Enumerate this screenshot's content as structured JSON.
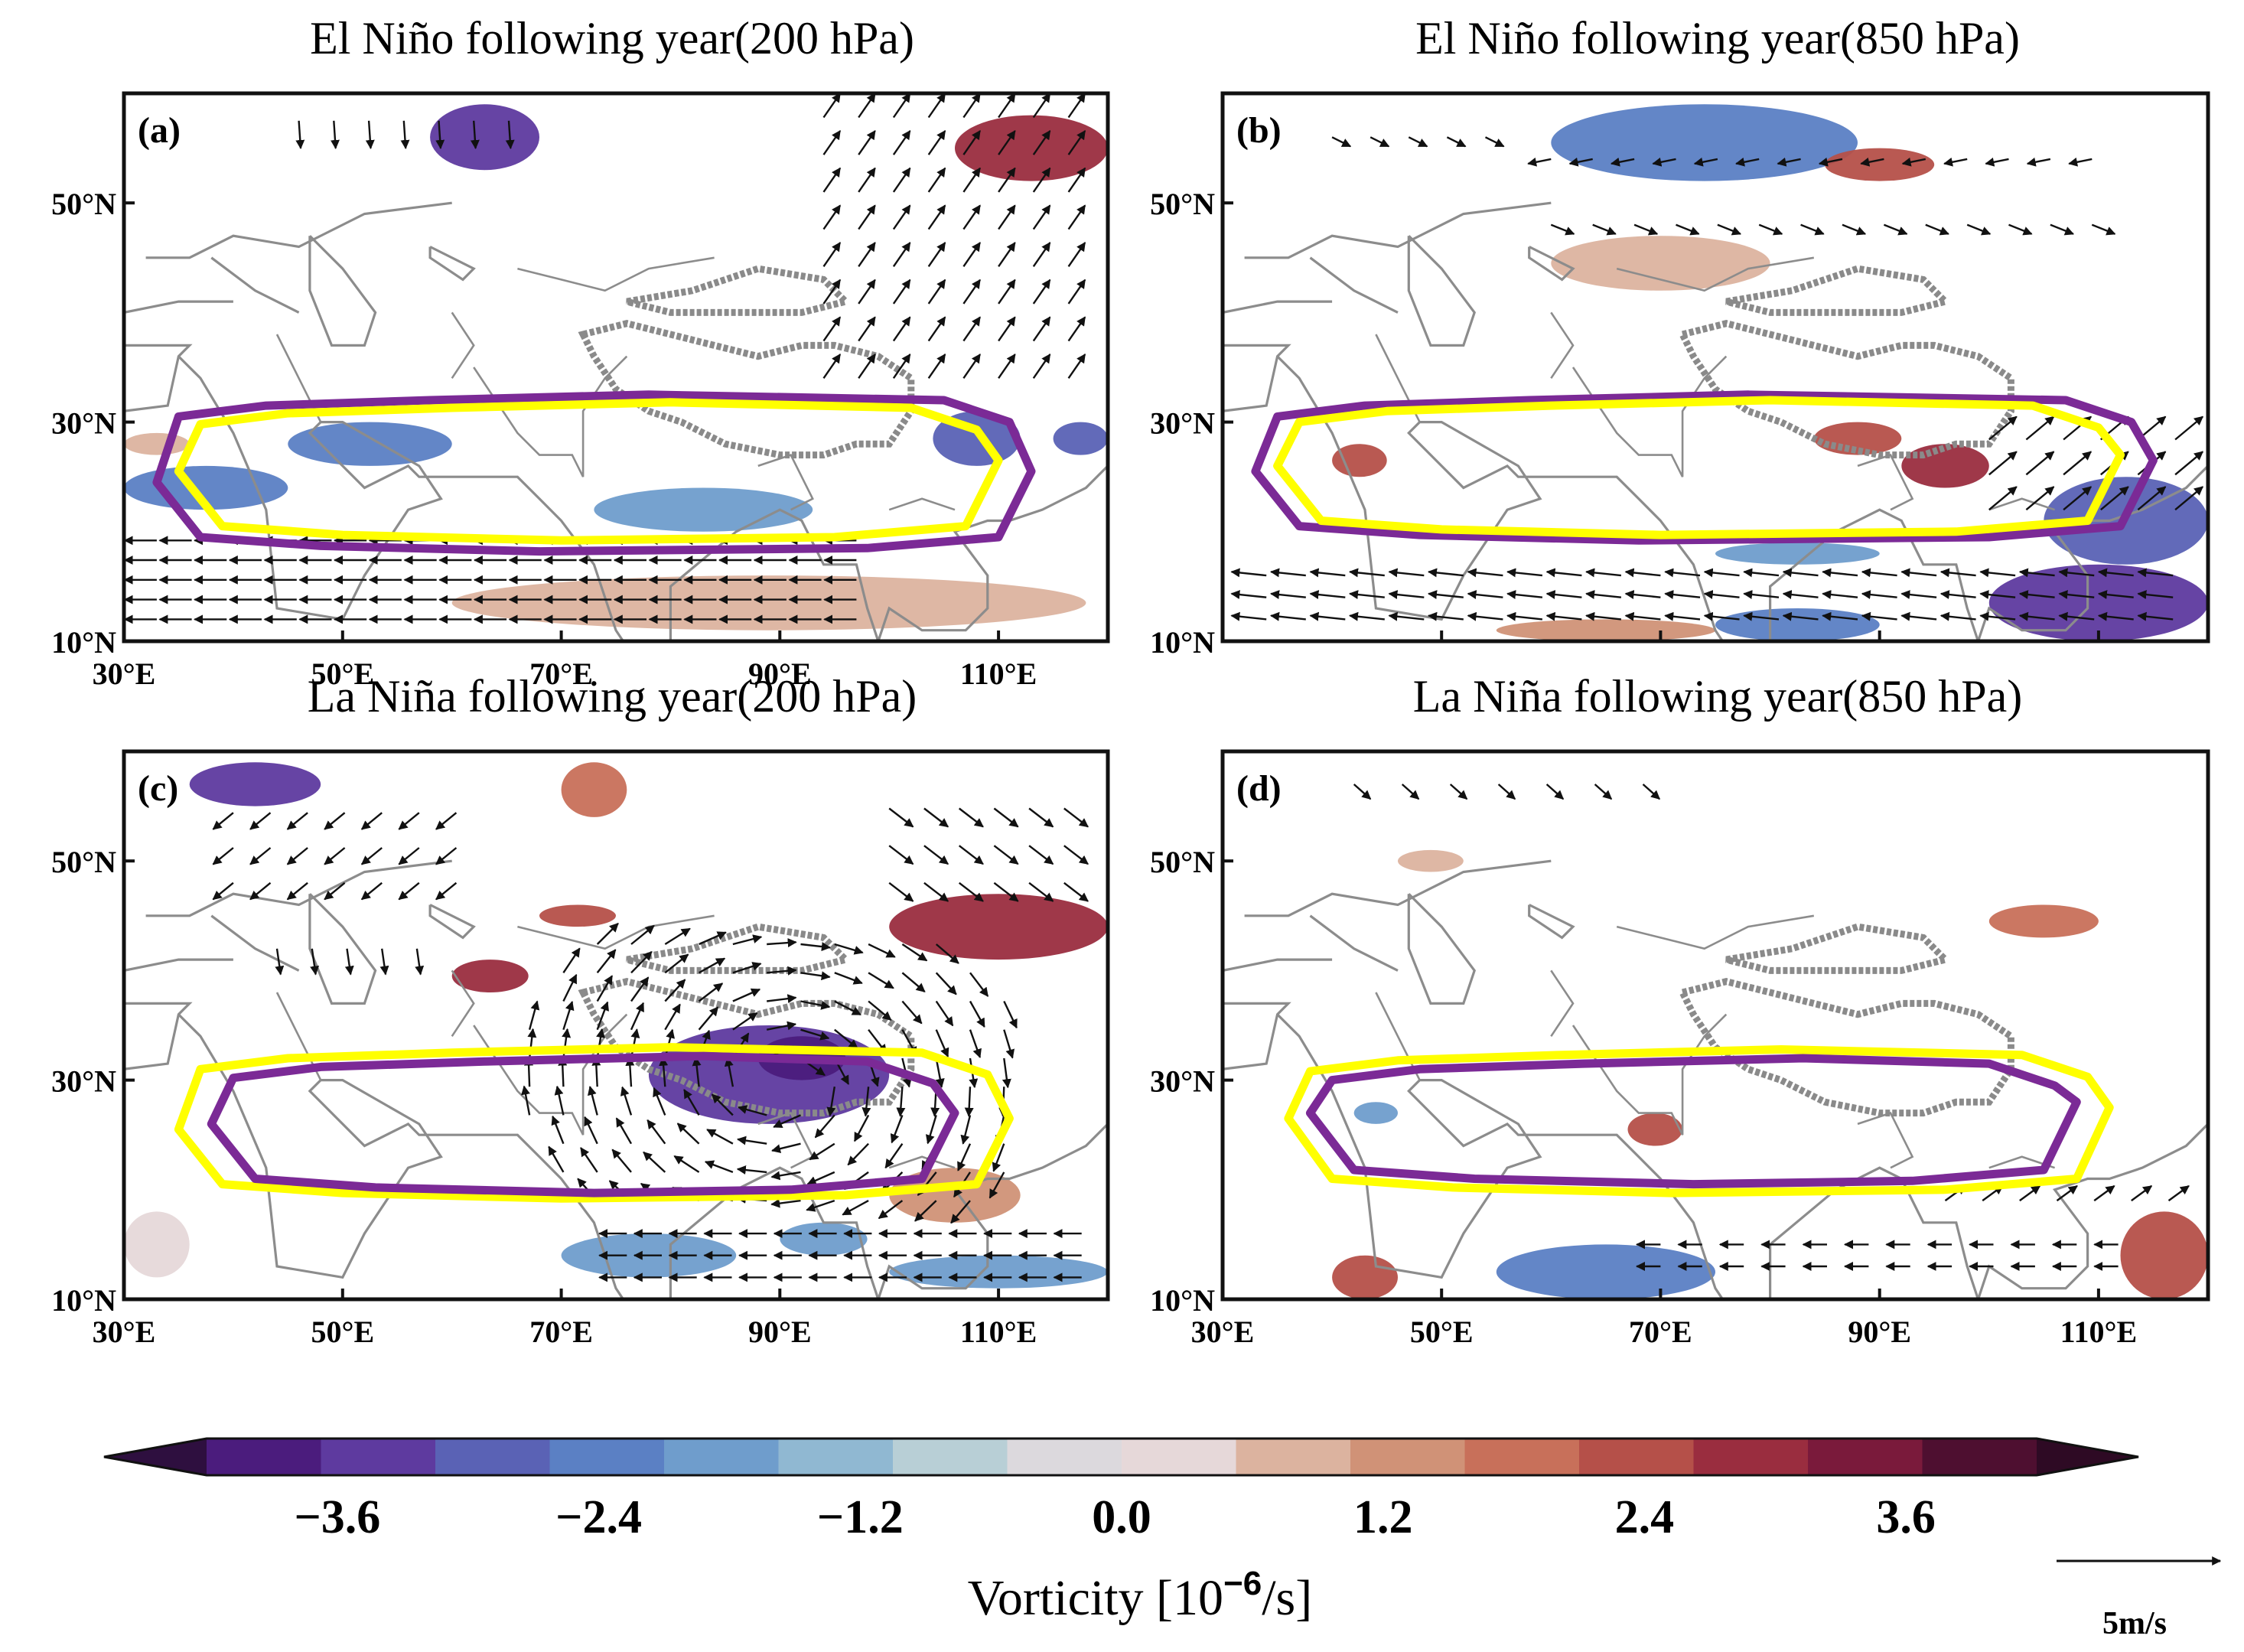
{
  "chart_data": [
    {
      "type": "map_contour_vector",
      "panel_label": "(a)",
      "title": "El Niño following year(200 hPa)",
      "lon_ticks": [
        "30°E",
        "50°E",
        "70°E",
        "90°E",
        "110°E"
      ],
      "lat_ticks": [
        "50°N",
        "30°N",
        "10°N"
      ],
      "lon_range": [
        30,
        120
      ],
      "lat_range": [
        10,
        60
      ],
      "contour_colors": [
        "#7b2a96",
        "#ffff00"
      ],
      "vorticity_patches": [
        {
          "lon": [
            58,
            68
          ],
          "lat": [
            53,
            59
          ],
          "v": -3.6
        },
        {
          "lon": [
            30,
            45
          ],
          "lat": [
            22,
            26
          ],
          "v": -2.4
        },
        {
          "lon": [
            45,
            60
          ],
          "lat": [
            26,
            30
          ],
          "v": -2.4
        },
        {
          "lon": [
            73,
            93
          ],
          "lat": [
            20,
            24
          ],
          "v": -1.8
        },
        {
          "lon": [
            104,
            112
          ],
          "lat": [
            26,
            31
          ],
          "v": -3.0
        },
        {
          "lon": [
            115,
            120
          ],
          "lat": [
            27,
            30
          ],
          "v": -3.0
        },
        {
          "lon": [
            106,
            120
          ],
          "lat": [
            52,
            58
          ],
          "v": 3.6
        },
        {
          "lon": [
            60,
            118
          ],
          "lat": [
            11,
            16
          ],
          "v": 1.6
        },
        {
          "lon": [
            30,
            36
          ],
          "lat": [
            27,
            29
          ],
          "v": 1.2
        }
      ],
      "wind_field": "divergent_east_west"
    },
    {
      "type": "map_contour_vector",
      "panel_label": "(b)",
      "title": "El Niño following year(850 hPa)",
      "lon_ticks": [],
      "lat_ticks": [
        "50°N",
        "30°N",
        "10°N"
      ],
      "lon_range": [
        30,
        120
      ],
      "lat_range": [
        10,
        60
      ],
      "contour_colors": [
        "#7b2a96",
        "#ffff00"
      ],
      "vorticity_patches": [
        {
          "lon": [
            60,
            88
          ],
          "lat": [
            52,
            59
          ],
          "v": -2.4
        },
        {
          "lon": [
            75,
            90
          ],
          "lat": [
            17,
            19
          ],
          "v": -1.8
        },
        {
          "lon": [
            100,
            120
          ],
          "lat": [
            10,
            17
          ],
          "v": -3.2
        },
        {
          "lon": [
            105,
            120
          ],
          "lat": [
            17,
            25
          ],
          "v": -2.8
        },
        {
          "lon": [
            75,
            90
          ],
          "lat": [
            10,
            13
          ],
          "v": -2.0
        },
        {
          "lon": [
            55,
            75
          ],
          "lat": [
            10,
            12
          ],
          "v": 2.2
        },
        {
          "lon": [
            40,
            45
          ],
          "lat": [
            25,
            28
          ],
          "v": 3.0
        },
        {
          "lon": [
            84,
            92
          ],
          "lat": [
            27,
            30
          ],
          "v": 3.2
        },
        {
          "lon": [
            92,
            100
          ],
          "lat": [
            24,
            28
          ],
          "v": 3.6
        },
        {
          "lon": [
            60,
            80
          ],
          "lat": [
            42,
            47
          ],
          "v": 1.6
        },
        {
          "lon": [
            85,
            95
          ],
          "lat": [
            52,
            55
          ],
          "v": 3.0
        }
      ],
      "wind_field": "easterlies_south"
    },
    {
      "type": "map_contour_vector",
      "panel_label": "(c)",
      "title": "La Niña following year(200 hPa)",
      "lon_ticks": [
        "30°E",
        "50°E",
        "70°E",
        "90°E",
        "110°E"
      ],
      "lat_ticks": [
        "50°N",
        "30°N",
        "10°N"
      ],
      "lon_range": [
        30,
        120
      ],
      "lat_range": [
        10,
        60
      ],
      "contour_colors": [
        "#ffff00",
        "#7b2a96"
      ],
      "vorticity_patches": [
        {
          "lon": [
            36,
            48
          ],
          "lat": [
            55,
            59
          ],
          "v": -3.6
        },
        {
          "lon": [
            78,
            100
          ],
          "lat": [
            26,
            35
          ],
          "v": -3.6
        },
        {
          "lon": [
            88,
            96
          ],
          "lat": [
            30,
            34
          ],
          "v": -3.8
        },
        {
          "lon": [
            70,
            86
          ],
          "lat": [
            12,
            16
          ],
          "v": -1.6
        },
        {
          "lon": [
            100,
            120
          ],
          "lat": [
            11,
            14
          ],
          "v": -1.4
        },
        {
          "lon": [
            90,
            98
          ],
          "lat": [
            14,
            17
          ],
          "v": -1.6
        },
        {
          "lon": [
            30,
            36
          ],
          "lat": [
            12,
            18
          ],
          "v": 1.0
        },
        {
          "lon": [
            70,
            76
          ],
          "lat": [
            54,
            59
          ],
          "v": 2.6
        },
        {
          "lon": [
            68,
            75
          ],
          "lat": [
            44,
            46
          ],
          "v": 3.2
        },
        {
          "lon": [
            60,
            67
          ],
          "lat": [
            38,
            41
          ],
          "v": 3.6
        },
        {
          "lon": [
            100,
            120
          ],
          "lat": [
            41,
            47
          ],
          "v": 3.8
        },
        {
          "lon": [
            100,
            112
          ],
          "lat": [
            17,
            22
          ],
          "v": 2.0
        }
      ],
      "wind_field": "anticyclone_centered_90E_30N"
    },
    {
      "type": "map_contour_vector",
      "panel_label": "(d)",
      "title": "La Niña following year(850 hPa)",
      "lon_ticks": [
        "30°E",
        "50°E",
        "70°E",
        "90°E",
        "110°E"
      ],
      "lat_ticks": [
        "50°N",
        "30°N",
        "10°N"
      ],
      "lon_range": [
        30,
        120
      ],
      "lat_range": [
        10,
        60
      ],
      "contour_colors": [
        "#ffff00",
        "#7b2a96"
      ],
      "vorticity_patches": [
        {
          "lon": [
            55,
            75
          ],
          "lat": [
            10,
            15
          ],
          "v": -2.2
        },
        {
          "lon": [
            42,
            46
          ],
          "lat": [
            26,
            28
          ],
          "v": -1.6
        },
        {
          "lon": [
            67,
            72
          ],
          "lat": [
            24,
            27
          ],
          "v": 3.0
        },
        {
          "lon": [
            112,
            120
          ],
          "lat": [
            10,
            18
          ],
          "v": 3.4
        },
        {
          "lon": [
            46,
            52
          ],
          "lat": [
            49,
            51
          ],
          "v": 1.6
        },
        {
          "lon": [
            100,
            110
          ],
          "lat": [
            43,
            46
          ],
          "v": 2.4
        },
        {
          "lon": [
            40,
            46
          ],
          "lat": [
            10,
            14
          ],
          "v": 3.4
        }
      ],
      "wind_field": "weak_mixed"
    },
    {
      "type": "colorbar",
      "label": "Vorticity [10",
      "label_exp": "−6",
      "label_unit": "/s]",
      "ticks": [
        "−3.6",
        "−2.4",
        "−1.2",
        "0.0",
        "1.2",
        "2.4",
        "3.6"
      ],
      "levels": [
        -4.2,
        -3.6,
        -3.0,
        -2.4,
        -1.8,
        -1.2,
        -0.6,
        0,
        0.6,
        1.2,
        1.8,
        2.4,
        3.0,
        3.6,
        4.2
      ],
      "colors": [
        "#2e0f3f",
        "#4b1c7d",
        "#5e3a9f",
        "#5a62b5",
        "#5b80c4",
        "#6f9dcc",
        "#90b8d2",
        "#b8cfd6",
        "#dcd9dd",
        "#e6d8d9",
        "#dcb39f",
        "#d09277",
        "#c8705a",
        "#b55049",
        "#9a2d3f",
        "#7a1a3b",
        "#4e0f30",
        "#2e0a24"
      ],
      "reference_vector": "5m/s"
    }
  ]
}
